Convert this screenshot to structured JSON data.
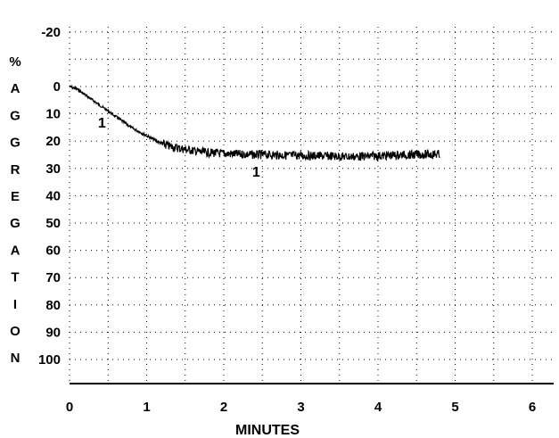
{
  "chart_data": {
    "type": "line",
    "title": "",
    "xlabel": "MINUTES",
    "ylabel": "% AGGREGATION",
    "ylabel_chars": [
      "%",
      "A",
      "G",
      "G",
      "R",
      "E",
      "G",
      "A",
      "T",
      "I",
      "O",
      "N"
    ],
    "xlim": [
      0,
      6.2
    ],
    "ylim": [
      -20,
      110
    ],
    "y_inverted": true,
    "grid": true,
    "grid_style": "dotted",
    "x_ticks": [
      "0",
      "1",
      "2",
      "3",
      "4",
      "5",
      "6"
    ],
    "y_ticks": [
      "-20",
      "0",
      "10",
      "20",
      "30",
      "40",
      "50",
      "60",
      "70",
      "80",
      "90",
      "100"
    ],
    "series": [
      {
        "x": [
          0.0,
          0.1,
          0.2,
          0.3,
          0.4,
          0.5,
          0.6,
          0.7,
          0.8,
          0.9,
          1.0,
          1.1,
          1.2,
          1.3,
          1.4,
          1.5,
          1.6,
          1.7,
          1.8,
          1.9,
          2.0,
          2.2,
          2.4,
          2.6,
          2.8,
          3.0,
          3.2,
          3.4,
          3.6,
          3.8,
          4.0,
          4.2,
          4.4,
          4.6,
          4.8
        ],
        "y": [
          0,
          1,
          3,
          5,
          7,
          9,
          11,
          13,
          15,
          16.5,
          18,
          19.5,
          21,
          22,
          22.5,
          23,
          23.5,
          24,
          24.2,
          24.4,
          24.6,
          24.8,
          25,
          25,
          25.2,
          25.3,
          25.4,
          25.5,
          25.7,
          25.6,
          25.4,
          25.2,
          25,
          24.9,
          24.8
        ],
        "color": "#000000"
      }
    ],
    "annotations": [
      {
        "text": "1",
        "x": 0.42,
        "y": 13
      },
      {
        "text": "1",
        "x": 2.42,
        "y": 31
      }
    ]
  }
}
